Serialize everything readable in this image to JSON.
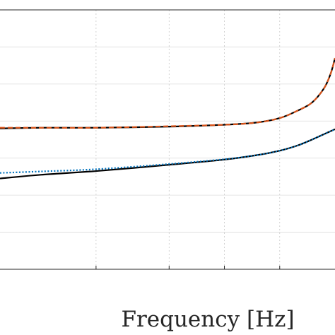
{
  "chart_data": {
    "type": "line",
    "xlabel": "Frequency [Hz]",
    "ylabel": "",
    "title": "",
    "xscale": "log",
    "x_gridlines": [
      20,
      50,
      100,
      200
    ],
    "xlim": [
      6,
      400
    ],
    "ylim": [
      0,
      7
    ],
    "y_gridlines": [
      1,
      2,
      3,
      4,
      5,
      6
    ],
    "grid": true,
    "series": [
      {
        "color": "#000000",
        "style": "solid",
        "x": [
          6,
          10,
          20,
          50,
          100,
          150,
          200,
          250,
          300,
          350,
          380,
          400
        ],
        "y": [
          3.8,
          3.82,
          3.82,
          3.85,
          3.9,
          3.96,
          4.08,
          4.28,
          4.5,
          4.9,
          5.3,
          5.7
        ]
      },
      {
        "color": "#d95319",
        "style": "dashed",
        "x": [
          6,
          10,
          20,
          50,
          100,
          150,
          200,
          250,
          300,
          350,
          380,
          400
        ],
        "y": [
          3.82,
          3.82,
          3.82,
          3.86,
          3.9,
          3.96,
          4.08,
          4.28,
          4.5,
          4.9,
          5.3,
          5.7
        ]
      },
      {
        "color": "#000000",
        "style": "solid",
        "x": [
          6,
          10,
          20,
          50,
          100,
          150,
          200,
          250,
          300,
          350,
          400
        ],
        "y": [
          2.45,
          2.55,
          2.65,
          2.82,
          2.96,
          3.08,
          3.2,
          3.34,
          3.5,
          3.65,
          3.78
        ]
      },
      {
        "color": "#0072bd",
        "style": "dotted",
        "x": [
          6,
          10,
          20,
          50,
          100,
          150,
          200,
          250,
          300,
          350,
          400
        ],
        "y": [
          2.6,
          2.64,
          2.7,
          2.84,
          2.97,
          3.08,
          3.2,
          3.34,
          3.5,
          3.65,
          3.78
        ]
      }
    ]
  }
}
